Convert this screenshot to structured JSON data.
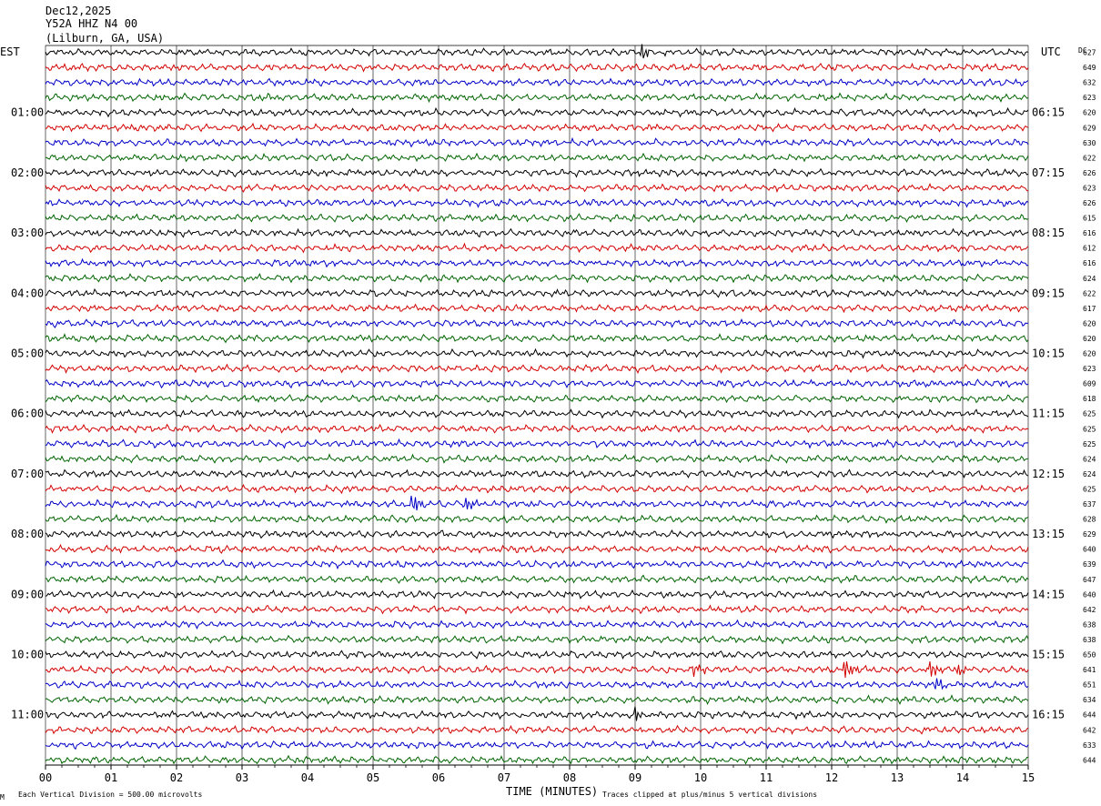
{
  "header": {
    "date": "Dec12,2025",
    "station": "Y52A HHZ N4 00",
    "location": "(Lilburn, GA, USA)"
  },
  "left_zone": "EST",
  "right_zone": "UTC",
  "dc_header": "DC",
  "footer": {
    "left": "Each Vertical Division =  500.00 microvolts",
    "right": "Traces clipped at plus/minus 5 vertical divisions",
    "corner": "M"
  },
  "colors": {
    "trace": [
      "#000000",
      "#d40000",
      "#0000c8",
      "#006400"
    ],
    "grid": "#000000"
  },
  "chart_data": {
    "type": "line",
    "xlabel": "TIME (MINUTES)",
    "xlim": [
      0,
      15
    ],
    "x_ticks": [
      "00",
      "01",
      "02",
      "03",
      "04",
      "05",
      "06",
      "07",
      "08",
      "09",
      "10",
      "11",
      "12",
      "13",
      "14",
      "15"
    ],
    "row_minutes": 15,
    "rows": 48,
    "hour_labels_left": [
      "01:00",
      "02:00",
      "03:00",
      "04:00",
      "05:00",
      "06:00",
      "07:00",
      "08:00",
      "09:00",
      "10:00",
      "11:00"
    ],
    "hour_labels_right": [
      "06:15",
      "07:15",
      "08:15",
      "09:15",
      "10:15",
      "11:15",
      "12:15",
      "13:15",
      "14:15",
      "15:15",
      "16:15"
    ],
    "dc_offsets": [
      "627",
      "649",
      "632",
      "623",
      "620",
      "629",
      "630",
      "622",
      "626",
      "623",
      "626",
      "615",
      "616",
      "612",
      "616",
      "624",
      "622",
      "617",
      "620",
      "620",
      "620",
      "623",
      "609",
      "618",
      "625",
      "625",
      "625",
      "624",
      "624",
      "625",
      "637",
      "628",
      "629",
      "640",
      "639",
      "647",
      "640",
      "642",
      "638",
      "638",
      "650",
      "641",
      "651",
      "634",
      "644",
      "642",
      "633",
      "644"
    ],
    "events": [
      {
        "row": 0,
        "minute": 9.1,
        "amp": 1.8
      },
      {
        "row": 30,
        "minute": 5.6,
        "amp": 2.6
      },
      {
        "row": 30,
        "minute": 6.4,
        "amp": 1.8
      },
      {
        "row": 41,
        "minute": 9.9,
        "amp": 1.8
      },
      {
        "row": 41,
        "minute": 12.2,
        "amp": 3.0
      },
      {
        "row": 41,
        "minute": 13.5,
        "amp": 2.2
      },
      {
        "row": 41,
        "minute": 13.9,
        "amp": 1.7
      },
      {
        "row": 42,
        "minute": 13.6,
        "amp": 1.3
      },
      {
        "row": 44,
        "minute": 9.0,
        "amp": 1.6
      }
    ]
  }
}
